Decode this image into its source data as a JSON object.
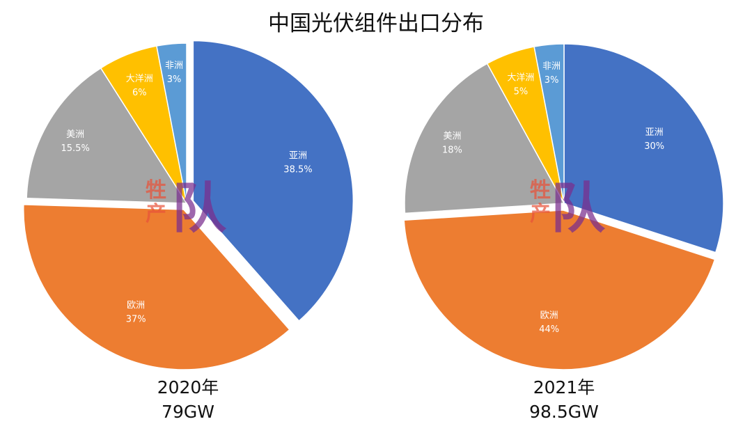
{
  "chart_data": {
    "title": "中国光伏组件出口分布",
    "type": "pie",
    "colors": {
      "亚洲": "#4472C4",
      "欧洲": "#ED7D31",
      "美洲": "#A5A5A5",
      "大洋洲": "#FFC000",
      "非洲": "#5B9BD5"
    },
    "charts": [
      {
        "caption_year": "2020年",
        "caption_total": "79GW",
        "exploded": [
          "亚洲",
          "欧洲"
        ],
        "slices": [
          {
            "label": "亚洲",
            "value": 38.5,
            "display": "38.5%"
          },
          {
            "label": "欧洲",
            "value": 37,
            "display": "37%"
          },
          {
            "label": "美洲",
            "value": 15.5,
            "display": "15.5%"
          },
          {
            "label": "大洋洲",
            "value": 6,
            "display": "6%"
          },
          {
            "label": "非洲",
            "value": 3,
            "display": "3%"
          }
        ]
      },
      {
        "caption_year": "2021年",
        "caption_total": "98.5GW",
        "exploded": [
          "欧洲"
        ],
        "slices": [
          {
            "label": "亚洲",
            "value": 30,
            "display": "30%"
          },
          {
            "label": "欧洲",
            "value": 44,
            "display": "44%"
          },
          {
            "label": "美洲",
            "value": 18,
            "display": "18%"
          },
          {
            "label": "大洋洲",
            "value": 5,
            "display": "5%"
          },
          {
            "label": "非洲",
            "value": 3,
            "display": "3%"
          }
        ]
      }
    ]
  },
  "watermark": {
    "line1": "牲",
    "line2": "产",
    "big": "队",
    "colors": [
      "#E8533A",
      "#7A2E8E"
    ]
  }
}
